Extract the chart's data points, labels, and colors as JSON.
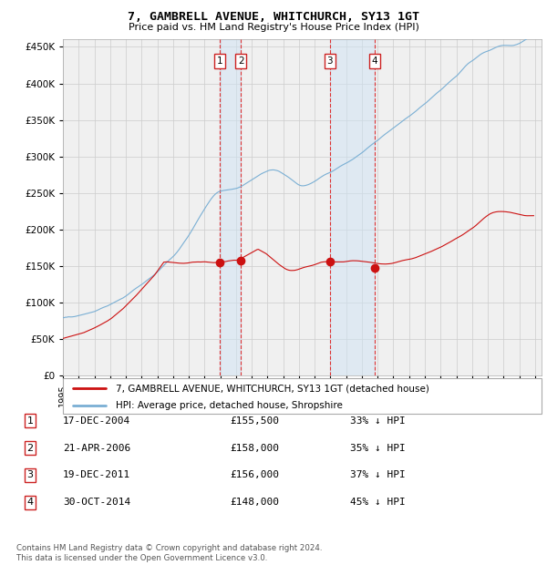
{
  "title": "7, GAMBRELL AVENUE, WHITCHURCH, SY13 1GT",
  "subtitle": "Price paid vs. HM Land Registry's House Price Index (HPI)",
  "ylim": [
    0,
    460000
  ],
  "yticks": [
    0,
    50000,
    100000,
    150000,
    200000,
    250000,
    300000,
    350000,
    400000,
    450000
  ],
  "background_color": "#ffffff",
  "grid_color": "#cccccc",
  "plot_bg": "#f0f0f0",
  "hpi_color": "#7aafd4",
  "price_color": "#cc1111",
  "legend_hpi_label": "HPI: Average price, detached house, Shropshire",
  "legend_price_label": "7, GAMBRELL AVENUE, WHITCHURCH, SY13 1GT (detached house)",
  "transactions": [
    {
      "date": "2004-12-17",
      "price": 155500,
      "label": "1"
    },
    {
      "date": "2006-04-21",
      "price": 158000,
      "label": "2"
    },
    {
      "date": "2011-12-19",
      "price": 156000,
      "label": "3"
    },
    {
      "date": "2014-10-30",
      "price": 148000,
      "label": "4"
    }
  ],
  "table_rows": [
    {
      "num": "1",
      "date": "17-DEC-2004",
      "price": "£155,500",
      "pct": "33% ↓ HPI"
    },
    {
      "num": "2",
      "date": "21-APR-2006",
      "price": "£158,000",
      "pct": "35% ↓ HPI"
    },
    {
      "num": "3",
      "date": "19-DEC-2011",
      "price": "£156,000",
      "pct": "37% ↓ HPI"
    },
    {
      "num": "4",
      "date": "30-OCT-2014",
      "price": "£148,000",
      "pct": "45% ↓ HPI"
    }
  ],
  "footer": "Contains HM Land Registry data © Crown copyright and database right 2024.\nThis data is licensed under the Open Government Licence v3.0.",
  "shade_regions": [
    {
      "start": "2004-12-17",
      "end": "2006-04-21"
    },
    {
      "start": "2011-12-19",
      "end": "2014-10-30"
    }
  ],
  "hpi_values": [
    79642,
    79438,
    80088,
    79993,
    80593,
    80504,
    80452,
    80498,
    80717,
    80971,
    81400,
    81861,
    82366,
    82633,
    83062,
    83454,
    84035,
    84494,
    84874,
    85359,
    85791,
    86162,
    86674,
    87209,
    87803,
    88552,
    89400,
    90168,
    91087,
    91992,
    92770,
    93534,
    94176,
    94842,
    95530,
    96459,
    97396,
    98278,
    99193,
    100134,
    101218,
    102217,
    103170,
    104054,
    104844,
    105659,
    106590,
    107740,
    108985,
    110318,
    111697,
    113044,
    114505,
    115996,
    117397,
    118725,
    119962,
    121113,
    122223,
    123501,
    124786,
    126083,
    127471,
    128857,
    130263,
    131606,
    132918,
    134298,
    135709,
    137145,
    138626,
    140230,
    141850,
    143570,
    145356,
    147240,
    149148,
    151035,
    152906,
    154786,
    156541,
    158184,
    159739,
    161352,
    163076,
    164882,
    166820,
    168921,
    171257,
    173687,
    176282,
    178977,
    181635,
    184201,
    186668,
    189248,
    192040,
    194978,
    197849,
    200750,
    203763,
    206919,
    210146,
    213335,
    216398,
    219358,
    222255,
    225243,
    228215,
    231074,
    233823,
    236534,
    239237,
    241819,
    244119,
    246291,
    248158,
    249674,
    250925,
    251890,
    252484,
    252931,
    253313,
    253636,
    253875,
    254110,
    254392,
    254643,
    254879,
    255162,
    255497,
    255849,
    256251,
    256740,
    257406,
    258203,
    259118,
    260103,
    261200,
    262333,
    263478,
    264572,
    265607,
    266660,
    267799,
    268993,
    270194,
    271350,
    272494,
    273681,
    274861,
    275947,
    276898,
    277728,
    278550,
    279400,
    280237,
    280896,
    281330,
    281572,
    281678,
    281596,
    281298,
    280862,
    280295,
    279517,
    278492,
    277350,
    276238,
    275146,
    273989,
    272823,
    271640,
    270355,
    268972,
    267544,
    266126,
    264723,
    263369,
    262099,
    261062,
    260358,
    259972,
    259874,
    260006,
    260329,
    260811,
    261419,
    262153,
    262997,
    263954,
    264949,
    266019,
    267140,
    268321,
    269556,
    270806,
    272022,
    273183,
    274256,
    275228,
    276087,
    276834,
    277584,
    278379,
    279238,
    280199,
    281300,
    282484,
    283679,
    284863,
    286013,
    287108,
    288113,
    289030,
    289948,
    290898,
    291889,
    292872,
    293867,
    294926,
    296083,
    297327,
    298619,
    299916,
    301229,
    302515,
    303784,
    305076,
    306468,
    307953,
    309476,
    311019,
    312557,
    314051,
    315454,
    316818,
    318192,
    319570,
    320885,
    322191,
    323566,
    325073,
    326587,
    328069,
    329507,
    330870,
    332197,
    333534,
    334875,
    336233,
    337573,
    338904,
    340245,
    341592,
    342932,
    344280,
    345660,
    347069,
    348468,
    349843,
    351221,
    352556,
    353829,
    355053,
    356282,
    357565,
    358888,
    360286,
    361802,
    363381,
    364960,
    366518,
    368016,
    369442,
    370801,
    372185,
    373601,
    375100,
    376684,
    378332,
    380012,
    381697,
    383345,
    384955,
    386490,
    387928,
    389343,
    390793,
    392319,
    393900,
    395538,
    397232,
    398945,
    400637,
    402279,
    403888,
    405439,
    406908,
    408365,
    409889,
    411564,
    413411,
    415396,
    417479,
    419596,
    421684,
    423701,
    425544,
    427141,
    428476,
    429679,
    430838,
    432071,
    433366,
    434683,
    436081,
    437547,
    438975,
    440244,
    441324,
    442230,
    442994,
    443651,
    444265,
    444901,
    445632,
    446491,
    447404,
    448289,
    449107,
    449885,
    450571,
    451163,
    451609,
    451906,
    452073,
    452074,
    452013,
    451930,
    451833,
    451754,
    451753,
    451867,
    452145,
    452598,
    453184,
    453869,
    454667,
    455570,
    456620,
    457762,
    458940,
    460108,
    461244,
    462319,
    463296,
    464121,
    464821,
    465471,
    466041,
    466587,
    467193,
    467872,
    468605,
    469378,
    470189,
    471062,
    471979,
    472886
  ],
  "price_values": [
    51000,
    51500,
    52000,
    52500,
    53000,
    53500,
    54000,
    54500,
    55000,
    55500,
    56000,
    56500,
    57000,
    57500,
    58000,
    58500,
    59000,
    59800,
    60600,
    61400,
    62200,
    63000,
    63800,
    64600,
    65400,
    66300,
    67200,
    68100,
    69000,
    70000,
    71000,
    72000,
    73000,
    74000,
    75000,
    76200,
    77400,
    78600,
    80000,
    81500,
    83000,
    84500,
    86000,
    87500,
    89000,
    90500,
    92000,
    93800,
    95600,
    97400,
    99200,
    101000,
    102800,
    104600,
    106400,
    108200,
    110000,
    112000,
    114000,
    116000,
    118000,
    120000,
    122000,
    124000,
    126000,
    128000,
    130000,
    132000,
    134000,
    136000,
    138000,
    140500,
    143000,
    145500,
    148000,
    150500,
    153000,
    155500,
    155500,
    155800,
    155700,
    155500,
    155300,
    155100,
    154900,
    154700,
    154500,
    154300,
    154100,
    154000,
    153900,
    153800,
    153800,
    153900,
    154000,
    154200,
    154500,
    154900,
    155200,
    155400,
    155500,
    155700,
    155800,
    155700,
    155600,
    155600,
    155700,
    155800,
    155900,
    155800,
    155600,
    155400,
    155200,
    155000,
    154800,
    154700,
    154900,
    155100,
    155300,
    155500,
    155500,
    155600,
    155800,
    156000,
    156200,
    156600,
    157000,
    157200,
    157500,
    157800,
    158000,
    158100,
    158000,
    158500,
    159000,
    159700,
    160500,
    161500,
    162500,
    163500,
    164500,
    165500,
    166500,
    167500,
    168500,
    169500,
    170500,
    171500,
    172500,
    173000,
    172000,
    171000,
    170000,
    169000,
    168000,
    167000,
    165500,
    164000,
    162500,
    161000,
    159500,
    158000,
    156500,
    155000,
    153500,
    152000,
    150700,
    149400,
    148100,
    147000,
    146000,
    145200,
    144600,
    144200,
    144000,
    144000,
    144100,
    144300,
    144700,
    145200,
    145800,
    146500,
    147100,
    147700,
    148300,
    148800,
    149200,
    149600,
    150000,
    150400,
    150900,
    151400,
    152000,
    152700,
    153400,
    154100,
    154800,
    155300,
    155600,
    155800,
    156000,
    156100,
    156000,
    155900,
    155800,
    155700,
    155700,
    155700,
    155700,
    155700,
    155700,
    155600,
    155600,
    155700,
    155800,
    156000,
    156300,
    156600,
    156900,
    157100,
    157300,
    157400,
    157400,
    157400,
    157300,
    157200,
    157000,
    156800,
    156600,
    156400,
    156200,
    156000,
    155800,
    155600,
    155300,
    155000,
    154700,
    154400,
    154100,
    153800,
    153500,
    153300,
    153100,
    153000,
    152900,
    152800,
    152800,
    152900,
    153000,
    153200,
    153400,
    153700,
    154100,
    154600,
    155100,
    155600,
    156100,
    156600,
    157100,
    157600,
    158000,
    158400,
    158700,
    159000,
    159300,
    159600,
    160000,
    160500,
    161000,
    161600,
    162300,
    163000,
    163700,
    164400,
    165100,
    165800,
    166500,
    167200,
    167900,
    168600,
    169400,
    170200,
    171000,
    171800,
    172600,
    173400,
    174200,
    175000,
    175900,
    176800,
    177700,
    178600,
    179600,
    180600,
    181600,
    182600,
    183700,
    184800,
    185900,
    186900,
    187900,
    188900,
    189900,
    190900,
    191900,
    193000,
    194200,
    195500,
    196800,
    198100,
    199300,
    200500,
    201700,
    202900,
    204200,
    205700,
    207300,
    209000,
    210700,
    212300,
    213900,
    215400,
    216900,
    218200,
    219500,
    220700,
    221700,
    222500,
    223200,
    223700,
    224100,
    224400,
    224600,
    224700,
    224700,
    224700,
    224600,
    224500,
    224300,
    224100,
    223900,
    223600,
    223200,
    222800,
    222400,
    222000,
    221600,
    221200,
    220800,
    220400,
    219900,
    219500,
    219200,
    219000,
    218900,
    218900,
    218900,
    218900,
    218900,
    219000
  ]
}
